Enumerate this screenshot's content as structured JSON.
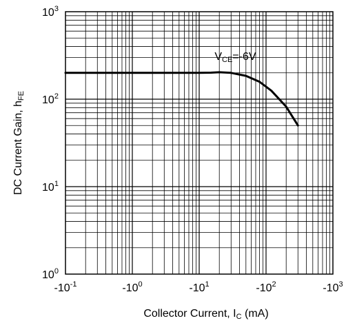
{
  "chart_data": {
    "type": "line",
    "title": "",
    "xlabel": {
      "main": "Collector Current, I",
      "sub": "C",
      "suffix": " (mA)"
    },
    "ylabel": {
      "main": "DC Current Gain, h",
      "sub": "FE"
    },
    "x_scale": "log",
    "y_scale": "log",
    "xlim": [
      -0.1,
      -1000
    ],
    "ylim": [
      1,
      1000
    ],
    "grid": true,
    "x_ticks": [
      {
        "base": "-10",
        "exp": "-1"
      },
      {
        "base": "-10",
        "exp": "0"
      },
      {
        "base": "-10",
        "exp": "1"
      },
      {
        "base": "-10",
        "exp": "2"
      },
      {
        "base": "-10",
        "exp": "3"
      }
    ],
    "y_ticks": [
      {
        "base": "10",
        "exp": "0"
      },
      {
        "base": "10",
        "exp": "1"
      },
      {
        "base": "10",
        "exp": "2"
      },
      {
        "base": "10",
        "exp": "3"
      }
    ],
    "series": [
      {
        "name": "",
        "x": [
          -0.1,
          -1,
          -10,
          -15,
          -20,
          -30,
          -50,
          -80,
          -120,
          -200,
          -300
        ],
        "y": [
          200,
          200,
          200,
          201,
          203,
          200,
          185,
          158,
          125,
          82,
          50
        ]
      }
    ],
    "annotation": {
      "main": "V",
      "sub": "CE",
      "suffix": "=-6V"
    }
  }
}
